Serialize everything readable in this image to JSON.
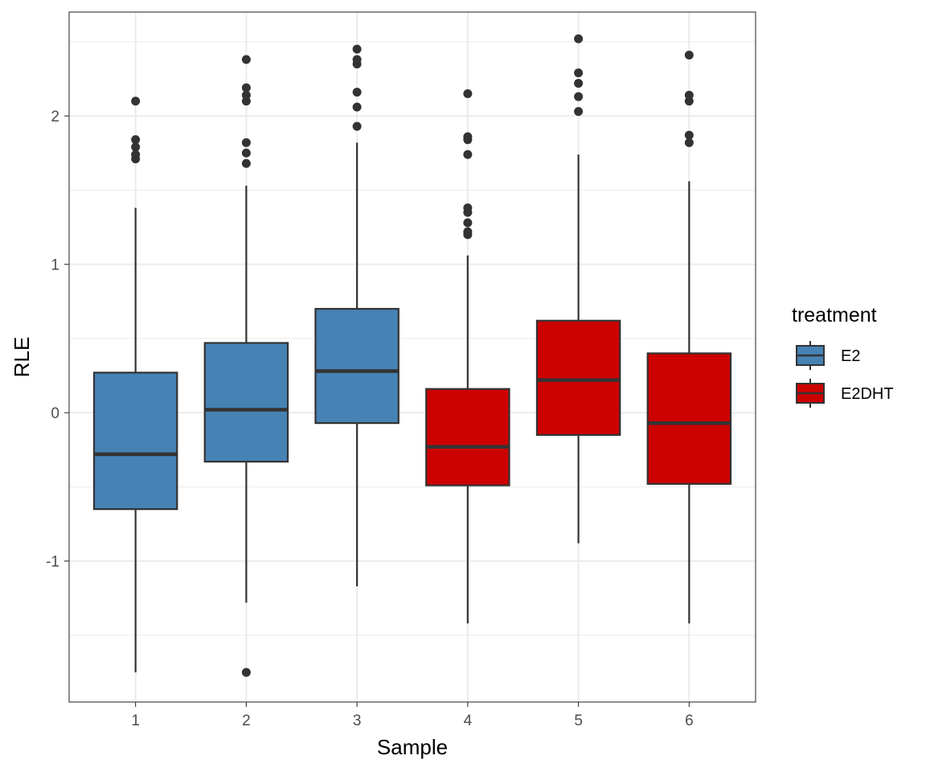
{
  "chart_data": {
    "type": "boxplot",
    "xlabel": "Sample",
    "ylabel": "RLE",
    "categories": [
      "1",
      "2",
      "3",
      "4",
      "5",
      "6"
    ],
    "ylim": [
      -1.95,
      2.7
    ],
    "y_ticks": [
      -1,
      0,
      1,
      2
    ],
    "y_tick_labels": [
      "-1",
      "0",
      "1",
      "2"
    ],
    "grid": true,
    "legend": {
      "title": "treatment",
      "position": "right",
      "entries": [
        {
          "label": "E2",
          "color": "#4682b4"
        },
        {
          "label": "E2DHT",
          "color": "#cd0000"
        }
      ]
    },
    "boxes": [
      {
        "category": "1",
        "treatment": "E2",
        "whisker_low": -1.75,
        "q1": -0.65,
        "median": -0.28,
        "q3": 0.27,
        "whisker_high": 1.38,
        "outliers": [
          2.1,
          1.84,
          1.79,
          1.74,
          1.71
        ]
      },
      {
        "category": "2",
        "treatment": "E2",
        "whisker_low": -1.28,
        "q1": -0.33,
        "median": 0.02,
        "q3": 0.47,
        "whisker_high": 1.53,
        "outliers": [
          2.38,
          2.19,
          2.14,
          2.1,
          1.82,
          1.75,
          1.68,
          -1.75
        ]
      },
      {
        "category": "3",
        "treatment": "E2",
        "whisker_low": -1.17,
        "q1": -0.07,
        "median": 0.28,
        "q3": 0.7,
        "whisker_high": 1.82,
        "outliers": [
          2.45,
          2.38,
          2.35,
          2.16,
          2.06,
          1.93
        ]
      },
      {
        "category": "4",
        "treatment": "E2DHT",
        "whisker_low": -1.42,
        "q1": -0.49,
        "median": -0.23,
        "q3": 0.16,
        "whisker_high": 1.06,
        "outliers": [
          2.15,
          1.86,
          1.84,
          1.74,
          1.38,
          1.35,
          1.28,
          1.22,
          1.2
        ]
      },
      {
        "category": "5",
        "treatment": "E2DHT",
        "whisker_low": -0.88,
        "q1": -0.15,
        "median": 0.22,
        "q3": 0.62,
        "whisker_high": 1.74,
        "outliers": [
          2.52,
          2.29,
          2.22,
          2.13,
          2.03
        ]
      },
      {
        "category": "6",
        "treatment": "E2DHT",
        "whisker_low": -1.42,
        "q1": -0.48,
        "median": -0.07,
        "q3": 0.4,
        "whisker_high": 1.56,
        "outliers": [
          2.41,
          2.14,
          2.1,
          1.87,
          1.82
        ]
      }
    ]
  }
}
